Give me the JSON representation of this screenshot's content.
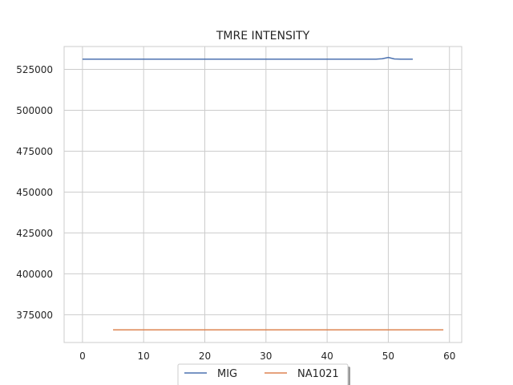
{
  "chart_data": {
    "type": "line",
    "title": "TMRE INTENSITY",
    "xlabel": "",
    "ylabel": "",
    "xlim": [
      -3,
      62
    ],
    "ylim": [
      358000,
      539000
    ],
    "xticks": [
      0,
      10,
      20,
      30,
      40,
      50,
      60
    ],
    "yticks": [
      375000,
      400000,
      425000,
      450000,
      475000,
      500000,
      525000
    ],
    "grid": true,
    "legend": {
      "position": "bottom-center",
      "entries": [
        "MIG",
        "NA1021"
      ]
    },
    "series": [
      {
        "name": "MIG",
        "color": "#4c72b0",
        "x": [
          0,
          10,
          20,
          30,
          40,
          48,
          49,
          50,
          51,
          52,
          53,
          54
        ],
        "y": [
          531300,
          531300,
          531300,
          531300,
          531300,
          531300,
          531500,
          532300,
          531400,
          531300,
          531300,
          531300
        ]
      },
      {
        "name": "NA1021",
        "color": "#dd8452",
        "x": [
          5,
          10,
          20,
          30,
          40,
          50,
          59
        ],
        "y": [
          365700,
          365700,
          365700,
          365700,
          365700,
          365700,
          365700
        ]
      }
    ]
  }
}
